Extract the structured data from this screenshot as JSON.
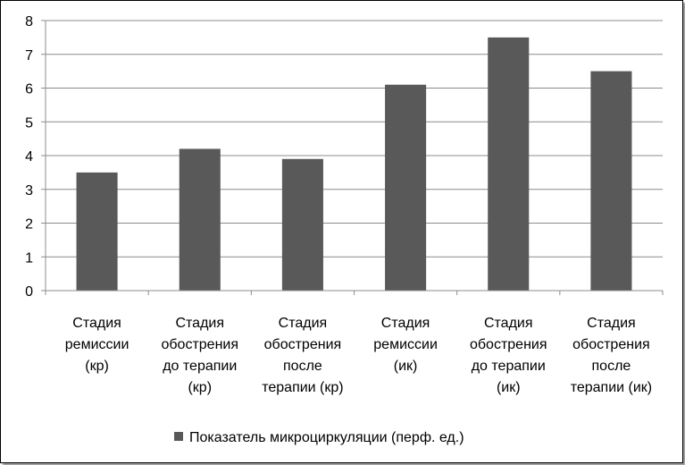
{
  "chart_data": {
    "type": "bar",
    "categories": [
      [
        "Стадия",
        "ремиссии",
        "(кр)"
      ],
      [
        "Стадия",
        "обострения",
        "до терапии",
        "(кр)"
      ],
      [
        "Стадия",
        "обострения",
        "после",
        "терапии (кр)"
      ],
      [
        "Стадия",
        "ремиссии",
        "(ик)"
      ],
      [
        "Стадия",
        "обострения",
        "до терапии",
        "(ик)"
      ],
      [
        "Стадия",
        "обострения",
        "после",
        "терапии (ик)"
      ]
    ],
    "series": [
      {
        "name": "Показатель микроциркуляции (перф. ед.)",
        "values": [
          3.5,
          4.2,
          3.9,
          6.1,
          7.5,
          6.5
        ],
        "color": "#595959"
      }
    ],
    "ylim": [
      0,
      8
    ],
    "yticks": [
      0,
      1,
      2,
      3,
      4,
      5,
      6,
      7,
      8
    ],
    "grid": true,
    "legend": "bottom",
    "title": "",
    "xlabel": "",
    "ylabel": ""
  }
}
